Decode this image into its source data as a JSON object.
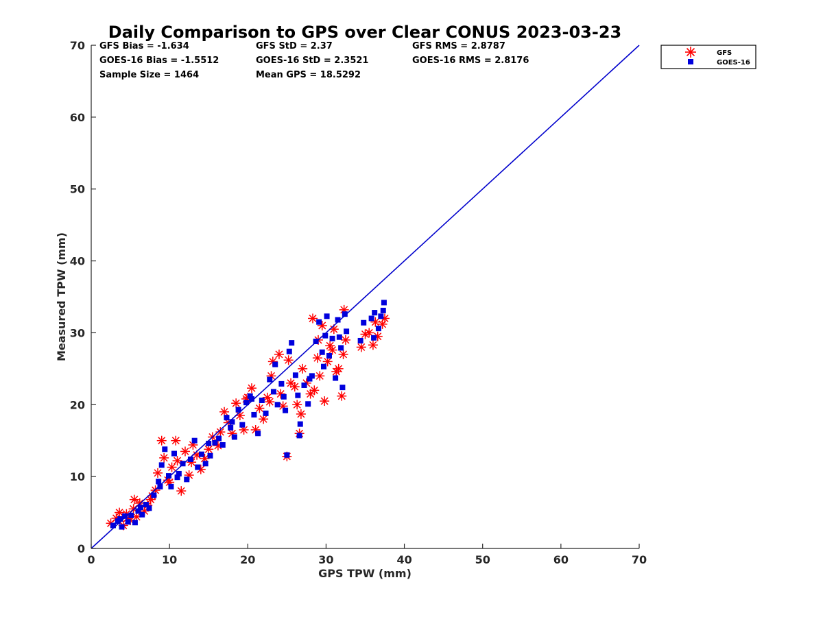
{
  "chart_data": {
    "type": "scatter",
    "title": "Daily Comparison to GPS over Clear CONUS 2023-03-23",
    "xlabel": "GPS TPW (mm)",
    "ylabel": "Measured TPW (mm)",
    "xlim": [
      0,
      70
    ],
    "ylim": [
      0,
      70
    ],
    "xticks": [
      "0",
      "10",
      "20",
      "30",
      "40",
      "50",
      "60",
      "70"
    ],
    "yticks": [
      "0",
      "10",
      "20",
      "30",
      "40",
      "50",
      "60",
      "70"
    ],
    "legend_position": "outside top-right",
    "stats": {
      "gfs_bias": "GFS Bias = -1.634",
      "goes_bias": "GOES-16 Bias = -1.5512",
      "sample_size": "Sample Size = 1464",
      "gfs_std": "GFS StD = 2.37",
      "goes_std": "GOES-16 StD = 2.3521",
      "mean_gps": "Mean GPS = 18.5292",
      "gfs_rms": "GFS RMS = 2.8787",
      "goes_rms": "GOES-16 RMS = 2.8176"
    },
    "reference_line": {
      "name": "1:1 line",
      "x": [
        0,
        70
      ],
      "y": [
        0,
        70
      ],
      "color": "#0000cc"
    },
    "series": [
      {
        "name": "GFS",
        "marker": "asterisk",
        "color": "#ff0000",
        "points": [
          [
            2.5,
            3.5
          ],
          [
            3.2,
            4.2
          ],
          [
            3.6,
            5.0
          ],
          [
            4.1,
            3.2
          ],
          [
            4.5,
            4.8
          ],
          [
            5.0,
            3.9
          ],
          [
            5.4,
            5.5
          ],
          [
            5.8,
            4.4
          ],
          [
            6.2,
            6.3
          ],
          [
            5.5,
            6.8
          ],
          [
            6.8,
            5.2
          ],
          [
            7.2,
            6.0
          ],
          [
            7.6,
            6.8
          ],
          [
            8.2,
            8.1
          ],
          [
            8.5,
            10.5
          ],
          [
            9.0,
            15.0
          ],
          [
            9.3,
            12.6
          ],
          [
            9.8,
            9.5
          ],
          [
            10.3,
            11.3
          ],
          [
            10.8,
            15.0
          ],
          [
            11.0,
            12.2
          ],
          [
            11.5,
            8.0
          ],
          [
            12.0,
            13.5
          ],
          [
            12.5,
            10.2
          ],
          [
            13.0,
            14.4
          ],
          [
            13.5,
            13.0
          ],
          [
            14.0,
            11.0
          ],
          [
            14.5,
            12.5
          ],
          [
            15.0,
            13.8
          ],
          [
            15.5,
            15.5
          ],
          [
            16.2,
            14.3
          ],
          [
            16.5,
            16.2
          ],
          [
            17.0,
            19.0
          ],
          [
            17.5,
            17.5
          ],
          [
            18.0,
            16.0
          ],
          [
            18.5,
            20.2
          ],
          [
            19.0,
            18.5
          ],
          [
            19.5,
            16.5
          ],
          [
            20.0,
            21.0
          ],
          [
            20.5,
            22.3
          ],
          [
            21.0,
            16.5
          ],
          [
            21.5,
            19.5
          ],
          [
            22.0,
            18.0
          ],
          [
            22.5,
            21.0
          ],
          [
            23.0,
            24.0
          ],
          [
            23.2,
            26.0
          ],
          [
            24.0,
            27.0
          ],
          [
            24.5,
            19.8
          ],
          [
            25.0,
            12.8
          ],
          [
            25.2,
            26.2
          ],
          [
            25.5,
            23.0
          ],
          [
            26.0,
            22.5
          ],
          [
            26.3,
            20.0
          ],
          [
            26.6,
            16.0
          ],
          [
            26.8,
            18.7
          ],
          [
            27.0,
            25.0
          ],
          [
            27.5,
            23.0
          ],
          [
            28.0,
            21.5
          ],
          [
            28.5,
            22.0
          ],
          [
            28.3,
            32.0
          ],
          [
            29.0,
            29.0
          ],
          [
            29.2,
            24.0
          ],
          [
            29.5,
            31.0
          ],
          [
            29.8,
            20.5
          ],
          [
            30.2,
            26.0
          ],
          [
            30.5,
            28.2
          ],
          [
            31.0,
            30.5
          ],
          [
            31.3,
            24.6
          ],
          [
            31.6,
            25.0
          ],
          [
            32.0,
            21.2
          ],
          [
            32.3,
            33.2
          ],
          [
            32.5,
            29.0
          ],
          [
            32.2,
            27.0
          ],
          [
            34.5,
            28.0
          ],
          [
            35.0,
            29.8
          ],
          [
            35.5,
            30.0
          ],
          [
            36.0,
            28.3
          ],
          [
            36.3,
            31.5
          ],
          [
            36.6,
            29.5
          ],
          [
            37.2,
            31.2
          ],
          [
            37.5,
            32.0
          ],
          [
            28.9,
            26.5
          ],
          [
            30.8,
            27.6
          ],
          [
            24.2,
            21.5
          ],
          [
            22.8,
            20.4
          ],
          [
            19.8,
            20.8
          ],
          [
            12.8,
            12.0
          ],
          [
            10.0,
            9.2
          ],
          [
            7.8,
            7.3
          ],
          [
            4.6,
            4.2
          ]
        ]
      },
      {
        "name": "GOES-16",
        "marker": "square",
        "color": "#0000dd",
        "points": [
          [
            2.8,
            3.2
          ],
          [
            3.4,
            3.8
          ],
          [
            3.9,
            3.0
          ],
          [
            4.3,
            4.5
          ],
          [
            4.7,
            3.7
          ],
          [
            5.1,
            4.6
          ],
          [
            5.6,
            3.6
          ],
          [
            6.0,
            5.2
          ],
          [
            6.5,
            4.7
          ],
          [
            7.0,
            6.1
          ],
          [
            7.4,
            5.6
          ],
          [
            8.0,
            7.4
          ],
          [
            8.6,
            9.3
          ],
          [
            9.0,
            11.6
          ],
          [
            9.4,
            13.8
          ],
          [
            9.9,
            10.1
          ],
          [
            10.2,
            8.6
          ],
          [
            10.6,
            13.2
          ],
          [
            11.2,
            10.4
          ],
          [
            11.7,
            11.8
          ],
          [
            12.2,
            9.6
          ],
          [
            12.7,
            12.4
          ],
          [
            13.2,
            15.0
          ],
          [
            13.6,
            11.3
          ],
          [
            14.1,
            13.1
          ],
          [
            14.6,
            11.8
          ],
          [
            15.2,
            12.9
          ],
          [
            15.8,
            14.7
          ],
          [
            16.3,
            15.3
          ],
          [
            16.8,
            14.4
          ],
          [
            17.3,
            18.2
          ],
          [
            17.8,
            16.8
          ],
          [
            18.3,
            15.5
          ],
          [
            18.8,
            19.3
          ],
          [
            19.3,
            17.2
          ],
          [
            19.8,
            20.3
          ],
          [
            20.3,
            21.2
          ],
          [
            20.8,
            18.6
          ],
          [
            21.3,
            16.0
          ],
          [
            21.8,
            20.6
          ],
          [
            22.3,
            18.8
          ],
          [
            22.8,
            23.5
          ],
          [
            23.3,
            21.8
          ],
          [
            23.8,
            20.0
          ],
          [
            24.3,
            22.9
          ],
          [
            24.8,
            19.2
          ],
          [
            25.3,
            27.4
          ],
          [
            25.6,
            28.6
          ],
          [
            26.1,
            24.1
          ],
          [
            26.4,
            21.3
          ],
          [
            26.7,
            17.3
          ],
          [
            27.2,
            22.7
          ],
          [
            27.7,
            20.1
          ],
          [
            28.2,
            24.0
          ],
          [
            28.7,
            28.8
          ],
          [
            29.1,
            31.5
          ],
          [
            29.5,
            27.3
          ],
          [
            29.9,
            29.6
          ],
          [
            30.1,
            32.3
          ],
          [
            30.4,
            26.8
          ],
          [
            30.8,
            29.2
          ],
          [
            31.2,
            23.7
          ],
          [
            31.5,
            31.8
          ],
          [
            31.9,
            27.9
          ],
          [
            32.1,
            22.4
          ],
          [
            32.4,
            32.6
          ],
          [
            32.6,
            30.2
          ],
          [
            34.4,
            28.9
          ],
          [
            34.8,
            31.4
          ],
          [
            35.8,
            32.0
          ],
          [
            36.2,
            32.8
          ],
          [
            36.7,
            30.6
          ],
          [
            37.0,
            32.3
          ],
          [
            37.4,
            34.2
          ],
          [
            37.3,
            33.1
          ],
          [
            36.1,
            29.3
          ],
          [
            25.0,
            13.0
          ],
          [
            26.6,
            15.7
          ],
          [
            23.5,
            25.6
          ],
          [
            20.5,
            20.8
          ],
          [
            15.0,
            14.6
          ],
          [
            11.0,
            9.9
          ],
          [
            8.8,
            8.6
          ],
          [
            6.3,
            5.7
          ],
          [
            3.7,
            4.1
          ],
          [
            27.9,
            23.6
          ],
          [
            29.7,
            25.3
          ],
          [
            31.7,
            29.4
          ],
          [
            24.6,
            21.1
          ],
          [
            18.0,
            17.6
          ]
        ]
      }
    ]
  }
}
